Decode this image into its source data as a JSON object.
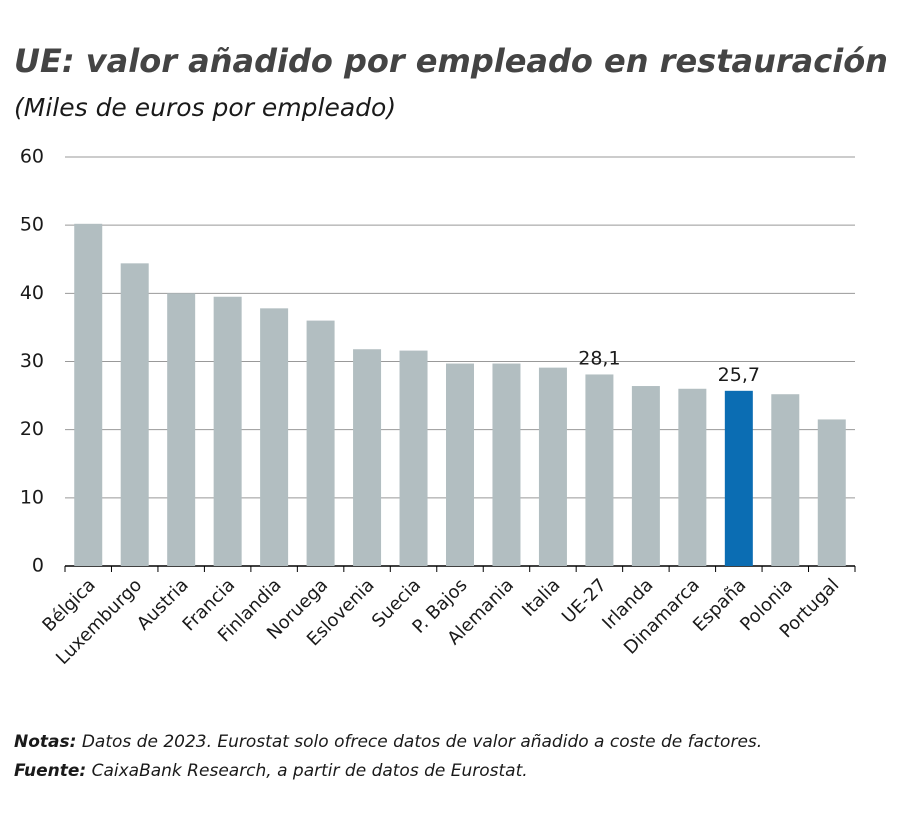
{
  "chart_data": {
    "type": "bar",
    "title": "UE: valor añadido por empleado en restauración",
    "subtitle": "(Miles de euros por empleado)",
    "categories": [
      "Bélgica",
      "Luxemburgo",
      "Austria",
      "Francia",
      "Finlandia",
      "Noruega",
      "Eslovenia",
      "Suecia",
      "P. Bajos",
      "Alemania",
      "Italia",
      "UE-27",
      "Irlanda",
      "Dinamarca",
      "España",
      "Polonia",
      "Portugal"
    ],
    "values": [
      50.2,
      44.4,
      40.0,
      39.5,
      37.8,
      36.0,
      31.8,
      31.6,
      29.7,
      29.7,
      29.1,
      28.1,
      26.4,
      26.0,
      25.7,
      25.2,
      21.5
    ],
    "value_labels": [
      null,
      null,
      null,
      null,
      null,
      null,
      null,
      null,
      null,
      null,
      null,
      "28,1",
      null,
      null,
      "25,7",
      null,
      null
    ],
    "colors": [
      "#b2bec1",
      "#b2bec1",
      "#b2bec1",
      "#b2bec1",
      "#b2bec1",
      "#b2bec1",
      "#b2bec1",
      "#b2bec1",
      "#b2bec1",
      "#b2bec1",
      "#b2bec1",
      "#b2bec1",
      "#b2bec1",
      "#b2bec1",
      "#0b6db3",
      "#b2bec1",
      "#b2bec1"
    ],
    "ylim": [
      0,
      60
    ],
    "yticks": [
      0,
      10,
      20,
      30,
      40,
      50,
      60
    ],
    "grid": true,
    "notes": [
      {
        "label": "Notas:",
        "text": "Datos de 2023. Eurostat solo ofrece datos de valor añadido a coste de factores."
      },
      {
        "label": "Fuente:",
        "text": "CaixaBank Research, a partir de datos de Eurostat."
      }
    ]
  }
}
